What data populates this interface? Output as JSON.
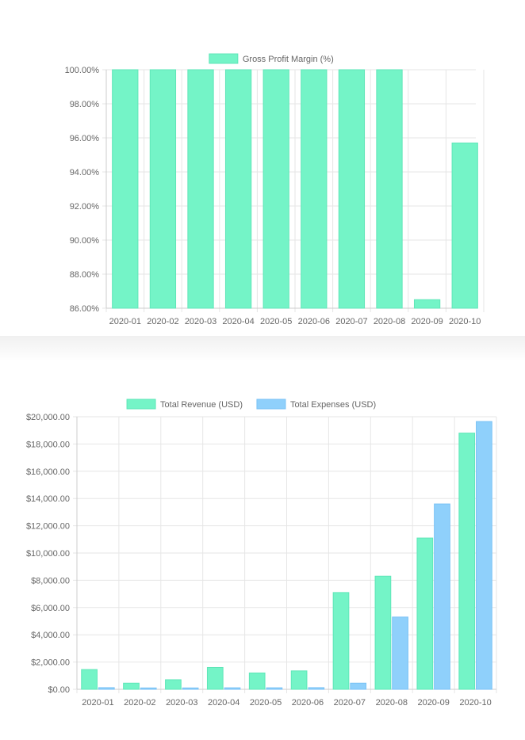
{
  "colors": {
    "revenue": "#74f4c7",
    "revenue_stroke": "#5fe6b8",
    "expenses": "#8fd0fb",
    "expenses_stroke": "#79c2f5",
    "grid": "#e6e6e6",
    "axis": "#cccccc",
    "text": "#666666"
  },
  "chart_data": [
    {
      "type": "bar",
      "categories": [
        "2020-01",
        "2020-02",
        "2020-03",
        "2020-04",
        "2020-05",
        "2020-06",
        "2020-07",
        "2020-08",
        "2020-09",
        "2020-10"
      ],
      "series": [
        {
          "name": "Gross Profit Margin (%)",
          "values": [
            100,
            100,
            100,
            100,
            100,
            100,
            100,
            100,
            86.5,
            95.7
          ]
        }
      ],
      "ylim": [
        86,
        100
      ],
      "yticks": [
        "100.00%",
        "98.00%",
        "96.00%",
        "94.00%",
        "92.00%",
        "90.00%",
        "88.00%",
        "86.00%"
      ],
      "ytick_values": [
        100,
        98,
        96,
        94,
        92,
        90,
        88,
        86
      ],
      "legend": "top",
      "grid": true
    },
    {
      "type": "bar",
      "categories": [
        "2020-01",
        "2020-02",
        "2020-03",
        "2020-04",
        "2020-05",
        "2020-06",
        "2020-07",
        "2020-08",
        "2020-09",
        "2020-10"
      ],
      "series": [
        {
          "name": "Total Revenue (USD)",
          "values": [
            1450,
            450,
            700,
            1600,
            1200,
            1350,
            7100,
            8300,
            11100,
            18800
          ]
        },
        {
          "name": "Total Expenses (USD)",
          "values": [
            120,
            100,
            100,
            110,
            110,
            120,
            450,
            5300,
            13600,
            19650
          ]
        }
      ],
      "ylim": [
        0,
        20000
      ],
      "yticks": [
        "$20,000.00",
        "$18,000.00",
        "$16,000.00",
        "$14,000.00",
        "$12,000.00",
        "$10,000.00",
        "$8,000.00",
        "$6,000.00",
        "$4,000.00",
        "$2,000.00",
        "$0.00"
      ],
      "ytick_values": [
        20000,
        18000,
        16000,
        14000,
        12000,
        10000,
        8000,
        6000,
        4000,
        2000,
        0
      ],
      "legend": "top",
      "grid": true
    }
  ]
}
